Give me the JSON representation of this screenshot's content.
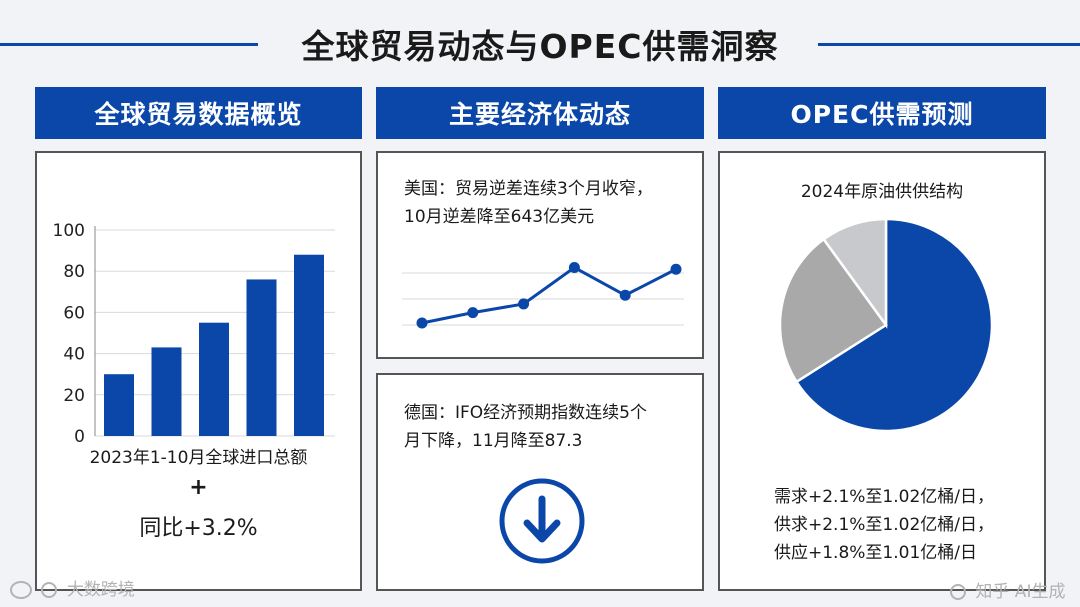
{
  "title": "全球贸易动态与OPEC供需洞察",
  "sections": {
    "left_header": "全球贸易数据概览",
    "middle_header": "主要经济体动态",
    "right_header": "OPEC供需预测"
  },
  "left": {
    "caption": "2023年1-10月全球进口总额",
    "plus_sign": "+",
    "yoy": "同比+3.2%"
  },
  "middle": {
    "us_line1": "美国：贸易逆差连续3个月收窄，",
    "us_line2": "10月逆差降至643亿美元",
    "de_line1": "德国：IFO经济预期指数连续5个",
    "de_line2": "月下降，11月降至87.3"
  },
  "right": {
    "pie_title": "2024年原油供供结构",
    "line1": "需求+2.1%至1.02亿桶/日，",
    "line2": "供求+2.1%至1.02亿桶/日，",
    "line3": "供应+1.8%至1.01亿桶/日"
  },
  "icons": {
    "down_arrow": "arrow-down-circle-icon",
    "logo": "weibo-logo-icon"
  },
  "watermarks": {
    "left": "大数跨境",
    "right": "知乎 AI生成"
  },
  "colors": {
    "accent": "#0a47a9",
    "pie_gray": "#a9a9a9",
    "pie_lightgray": "#c8c9cc"
  },
  "chart_data": [
    {
      "type": "bar",
      "values": [
        30,
        43,
        55,
        76,
        88
      ],
      "ylim": [
        0,
        100
      ],
      "yticks": [
        0,
        20,
        40,
        60,
        80,
        100
      ],
      "grid": true
    },
    {
      "type": "line",
      "values": [
        55,
        61,
        66,
        87,
        71,
        86
      ],
      "ylim": [
        40,
        100
      ],
      "grid": true
    },
    {
      "type": "pie",
      "slices": [
        0.66,
        0.24,
        0.1
      ]
    }
  ]
}
